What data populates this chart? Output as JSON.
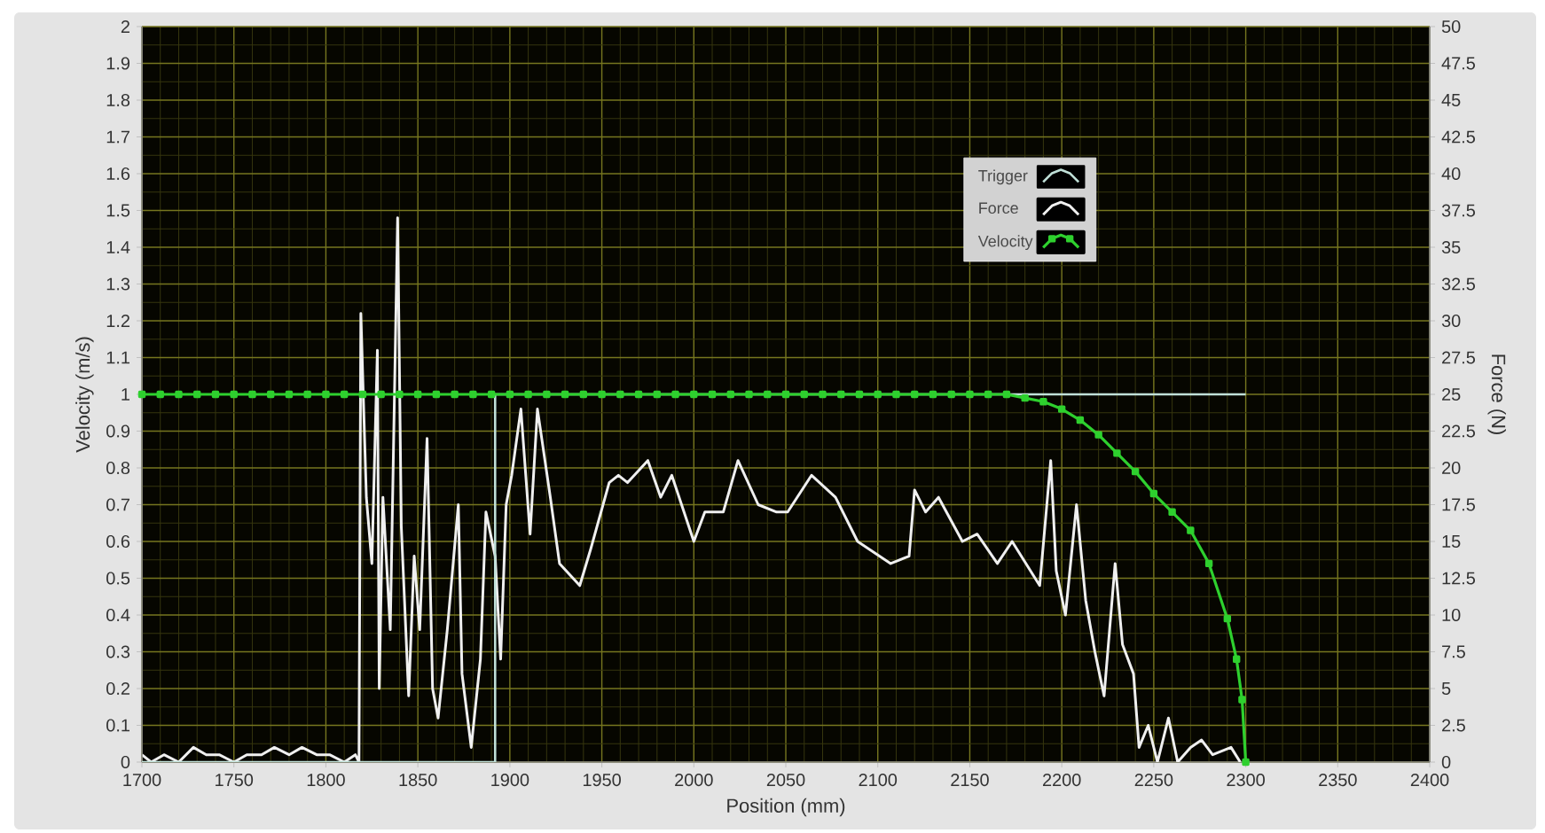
{
  "chart_data": {
    "type": "line",
    "xlabel": "Position (mm)",
    "ylabel": "Velocity (m/s)",
    "y2label": "Force (N)",
    "xlim": [
      1700,
      2400
    ],
    "xticks": [
      1700,
      1750,
      1800,
      1850,
      1900,
      1950,
      2000,
      2050,
      2100,
      2150,
      2200,
      2250,
      2300,
      2350,
      2400
    ],
    "ylim": [
      0,
      2
    ],
    "yticks": [
      0,
      0.1,
      0.2,
      0.3,
      0.4,
      0.5,
      0.6,
      0.7,
      0.8,
      0.9,
      1,
      1.1,
      1.2,
      1.3,
      1.4,
      1.5,
      1.6,
      1.7,
      1.8,
      1.9,
      2
    ],
    "y2lim": [
      0,
      50
    ],
    "y2ticks": [
      0,
      2.5,
      5,
      7.5,
      10,
      12.5,
      15,
      17.5,
      20,
      22.5,
      25,
      27.5,
      30,
      32.5,
      35,
      37.5,
      40,
      42.5,
      45,
      47.5,
      50
    ],
    "grid": true,
    "legend": "top right",
    "series": [
      {
        "name": "Trigger",
        "color": "#c0e0d8",
        "x": [
          1700,
          1892,
          1892,
          2300
        ],
        "values": [
          0,
          0,
          1,
          1
        ]
      },
      {
        "name": "Force",
        "color": "#f0f0f0",
        "axis": "y2",
        "x": [
          1700,
          1705,
          1712,
          1720,
          1728,
          1735,
          1742,
          1750,
          1757,
          1765,
          1772,
          1780,
          1787,
          1795,
          1802,
          1810,
          1816,
          1818,
          1819,
          1822,
          1825,
          1828,
          1829,
          1831,
          1835,
          1839,
          1841,
          1845,
          1848,
          1851,
          1855,
          1858,
          1861,
          1866,
          1872,
          1874,
          1879,
          1884,
          1887,
          1892,
          1895,
          1898,
          1901,
          1906,
          1911,
          1915,
          1922,
          1927,
          1938,
          1944,
          1954,
          1959,
          1964,
          1975,
          1982,
          1988,
          2000,
          2006,
          2016,
          2024,
          2035,
          2045,
          2051,
          2064,
          2077,
          2089,
          2107,
          2117,
          2120,
          2126,
          2133,
          2146,
          2154,
          2165,
          2173,
          2188,
          2194,
          2197,
          2202,
          2208,
          2213,
          2218,
          2223,
          2229,
          2233,
          2239,
          2242,
          2247,
          2252,
          2258,
          2263,
          2270,
          2276,
          2282,
          2292,
          2297
        ],
        "values": [
          0.5,
          0,
          0.5,
          0,
          1,
          0.5,
          0.5,
          0,
          0.5,
          0.5,
          1,
          0.5,
          1,
          0.5,
          0.5,
          0,
          0.5,
          0,
          30.5,
          18,
          13.5,
          28,
          5,
          18,
          9,
          37,
          16,
          4.5,
          14,
          9,
          22,
          5,
          3,
          9,
          17.5,
          6,
          1,
          7,
          17,
          14,
          7,
          17.5,
          19.5,
          24,
          15.5,
          24,
          18,
          13.5,
          12,
          14.5,
          19,
          19.5,
          19,
          20.5,
          18,
          19.5,
          15,
          17,
          17,
          20.5,
          17.5,
          17,
          17,
          19.5,
          18,
          15,
          13.5,
          14,
          18.5,
          17,
          18,
          15,
          15.5,
          13.5,
          15,
          12,
          20.5,
          13,
          10,
          17.5,
          11,
          7.5,
          4.5,
          13.5,
          8,
          6,
          1,
          2.5,
          0,
          3,
          0,
          1,
          1.5,
          0.5,
          1,
          0
        ]
      },
      {
        "name": "Velocity",
        "color": "#2ed02e",
        "marker": "square",
        "x": [
          1700,
          1710,
          1720,
          1730,
          1740,
          1750,
          1760,
          1770,
          1780,
          1790,
          1800,
          1810,
          1820,
          1830,
          1840,
          1850,
          1860,
          1870,
          1880,
          1890,
          1900,
          1910,
          1920,
          1930,
          1940,
          1950,
          1960,
          1970,
          1980,
          1990,
          2000,
          2010,
          2020,
          2030,
          2040,
          2050,
          2060,
          2070,
          2080,
          2090,
          2100,
          2110,
          2120,
          2130,
          2140,
          2150,
          2160,
          2170,
          2180,
          2190,
          2200,
          2210,
          2220,
          2230,
          2240,
          2250,
          2260,
          2270,
          2280,
          2290,
          2295,
          2298,
          2300
        ],
        "values": [
          1,
          1,
          1,
          1,
          1,
          1,
          1,
          1,
          1,
          1,
          1,
          1,
          1,
          1,
          1,
          1,
          1,
          1,
          1,
          1,
          1,
          1,
          1,
          1,
          1,
          1,
          1,
          1,
          1,
          1,
          1,
          1,
          1,
          1,
          1,
          1,
          1,
          1,
          1,
          1,
          1,
          1,
          1,
          1,
          1,
          1,
          1,
          1,
          0.99,
          0.98,
          0.96,
          0.93,
          0.89,
          0.84,
          0.79,
          0.73,
          0.68,
          0.63,
          0.54,
          0.39,
          0.28,
          0.17,
          0
        ]
      }
    ]
  }
}
